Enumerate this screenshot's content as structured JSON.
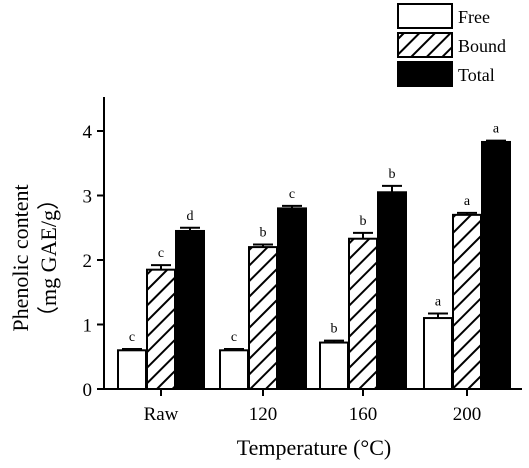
{
  "chart_data": {
    "type": "bar",
    "xlabel": "Temperature (°C)",
    "ylabel": "Phenolic content",
    "ylabel_unit": "（mg GAE/g）",
    "categories": [
      "Raw",
      "120",
      "160",
      "200"
    ],
    "ylim": [
      0,
      4
    ],
    "yticks": [
      "0",
      "1",
      "2",
      "3",
      "4"
    ],
    "grid": false,
    "legend_position": "top-right",
    "series": [
      {
        "name": "Free",
        "pattern": "none",
        "fill": "#ffffff",
        "values": [
          0.6,
          0.6,
          0.72,
          1.1
        ],
        "errors": [
          0.02,
          0.02,
          0.03,
          0.07
        ],
        "labels": [
          "c",
          "c",
          "b",
          "a"
        ]
      },
      {
        "name": "Bound",
        "pattern": "diagonal",
        "fill": "#ffffff",
        "values": [
          1.85,
          2.2,
          2.33,
          2.7
        ],
        "errors": [
          0.07,
          0.04,
          0.09,
          0.03
        ],
        "labels": [
          "c",
          "b",
          "b",
          "a"
        ]
      },
      {
        "name": "Total",
        "pattern": "solid",
        "fill": "#000000",
        "values": [
          2.45,
          2.8,
          3.05,
          3.83
        ],
        "errors": [
          0.05,
          0.04,
          0.1,
          0.02
        ],
        "labels": [
          "d",
          "c",
          "b",
          "a"
        ]
      }
    ]
  },
  "colors": {
    "ink": "#000000",
    "background": "#ffffff"
  }
}
